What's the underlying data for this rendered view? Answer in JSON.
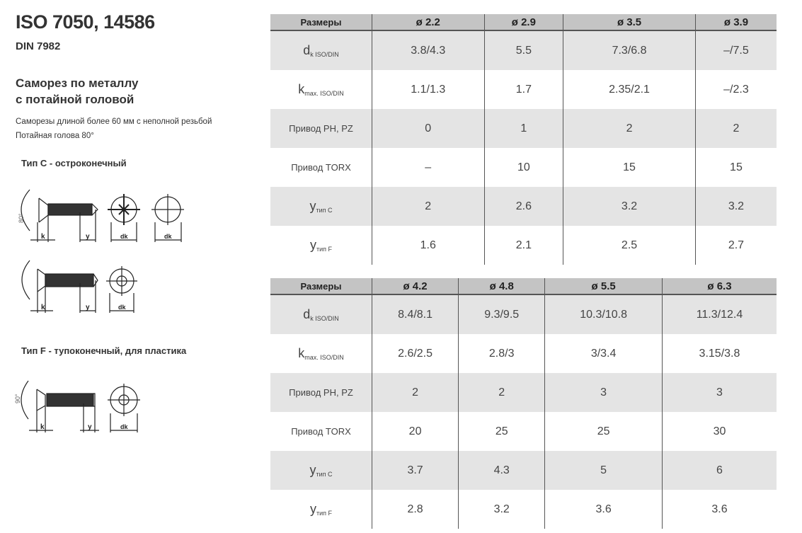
{
  "header": {
    "title": "ISO 7050, 14586",
    "standard": "DIN 7982",
    "product_name_line1": "Саморез по металлу",
    "product_name_line2": "с потайной головой",
    "note1": "Саморезы длиной более 60 мм с неполной резьбой",
    "note2": "Потайная голова 80°"
  },
  "types": {
    "type_c": "Тип С - остроконечный",
    "type_f": "Тип F - тупоконечный, для пластика"
  },
  "drawing_labels": {
    "k": "k",
    "y": "y",
    "dk": "dk",
    "angle80": "80°",
    "angle90": "90°"
  },
  "rows": {
    "dk": {
      "main": "d",
      "sub": "k ISO/DIN"
    },
    "k": {
      "main": "k",
      "sub": "max. ISO/DIN"
    },
    "ph": "Привод PH, PZ",
    "torx": "Привод TORX",
    "yc": {
      "main": "y",
      "sub": "тип C"
    },
    "yf": {
      "main": "y",
      "sub": "тип F"
    }
  },
  "tables": [
    {
      "header": [
        "Размеры",
        "ø 2.2",
        "ø 2.9",
        "ø 3.5",
        "ø 3.9"
      ],
      "dk": [
        "3.8/4.3",
        "5.5",
        "7.3/6.8",
        "–/7.5"
      ],
      "k": [
        "1.1/1.3",
        "1.7",
        "2.35/2.1",
        "–/2.3"
      ],
      "ph": [
        "0",
        "1",
        "2",
        "2"
      ],
      "torx": [
        "–",
        "10",
        "15",
        "15"
      ],
      "yc": [
        "2",
        "2.6",
        "3.2",
        "3.2"
      ],
      "yf": [
        "1.6",
        "2.1",
        "2.5",
        "2.7"
      ]
    },
    {
      "header": [
        "Размеры",
        "ø 4.2",
        "ø 4.8",
        "ø 5.5",
        "ø 6.3"
      ],
      "dk": [
        "8.4/8.1",
        "9.3/9.5",
        "10.3/10.8",
        "11.3/12.4"
      ],
      "k": [
        "2.6/2.5",
        "2.8/3",
        "3/3.4",
        "3.15/3.8"
      ],
      "ph": [
        "2",
        "2",
        "3",
        "3"
      ],
      "torx": [
        "20",
        "25",
        "25",
        "30"
      ],
      "yc": [
        "3.7",
        "4.3",
        "5",
        "6"
      ],
      "yf": [
        "2.8",
        "3.2",
        "3.6",
        "3.6"
      ]
    }
  ]
}
